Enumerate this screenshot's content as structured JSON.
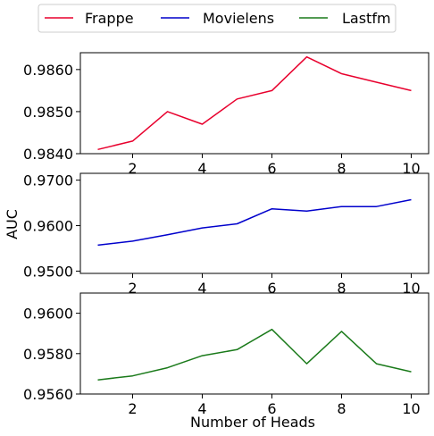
{
  "chart_data": [
    {
      "type": "line",
      "x": [
        1,
        2,
        3,
        4,
        5,
        6,
        7,
        8,
        9,
        10
      ],
      "series": [
        {
          "name": "Frappe",
          "color": "#e8002d",
          "values": [
            0.9841,
            0.9843,
            0.985,
            0.9847,
            0.9853,
            0.9855,
            0.9863,
            0.9859,
            0.9857,
            0.9855
          ]
        }
      ],
      "xlim": [
        0.5,
        10.5
      ],
      "ylim": [
        0.984,
        0.9864
      ],
      "xticks": [
        2,
        4,
        6,
        8,
        10
      ],
      "yticks": [
        0.984,
        0.985,
        0.986
      ],
      "ytick_labels": [
        "0.9840",
        "0.9850",
        "0.9860"
      ],
      "xlabel": "",
      "ylabel": ""
    },
    {
      "type": "line",
      "x": [
        1,
        2,
        3,
        4,
        5,
        6,
        7,
        8,
        9,
        10
      ],
      "series": [
        {
          "name": "Movielens",
          "color": "#0000cc",
          "values": [
            0.9557,
            0.9566,
            0.958,
            0.9595,
            0.9604,
            0.9637,
            0.9632,
            0.9642,
            0.9642,
            0.9657
          ]
        }
      ],
      "xlim": [
        0.5,
        10.5
      ],
      "ylim": [
        0.9495,
        0.9715
      ],
      "xticks": [
        2,
        4,
        6,
        8,
        10
      ],
      "yticks": [
        0.95,
        0.96,
        0.97
      ],
      "ytick_labels": [
        "0.9500",
        "0.9600",
        "0.9700"
      ],
      "xlabel": "",
      "ylabel": "AUC"
    },
    {
      "type": "line",
      "x": [
        1,
        2,
        3,
        4,
        5,
        6,
        7,
        8,
        9,
        10
      ],
      "series": [
        {
          "name": "Lastfm",
          "color": "#1a7a1a",
          "values": [
            0.9567,
            0.9569,
            0.9573,
            0.9579,
            0.9582,
            0.9592,
            0.9575,
            0.9591,
            0.9575,
            0.9571
          ]
        }
      ],
      "xlim": [
        0.5,
        10.5
      ],
      "ylim": [
        0.956,
        0.961
      ],
      "xticks": [
        2,
        4,
        6,
        8,
        10
      ],
      "yticks": [
        0.956,
        0.958,
        0.96
      ],
      "ytick_labels": [
        "0.9560",
        "0.9580",
        "0.9600"
      ],
      "xlabel": "Number of Heads",
      "ylabel": ""
    }
  ],
  "legend": {
    "position": "top-center",
    "items": [
      {
        "label": "Frappe",
        "color": "#e8002d"
      },
      {
        "label": "Movielens",
        "color": "#0000cc"
      },
      {
        "label": "Lastfm",
        "color": "#1a7a1a"
      }
    ]
  }
}
